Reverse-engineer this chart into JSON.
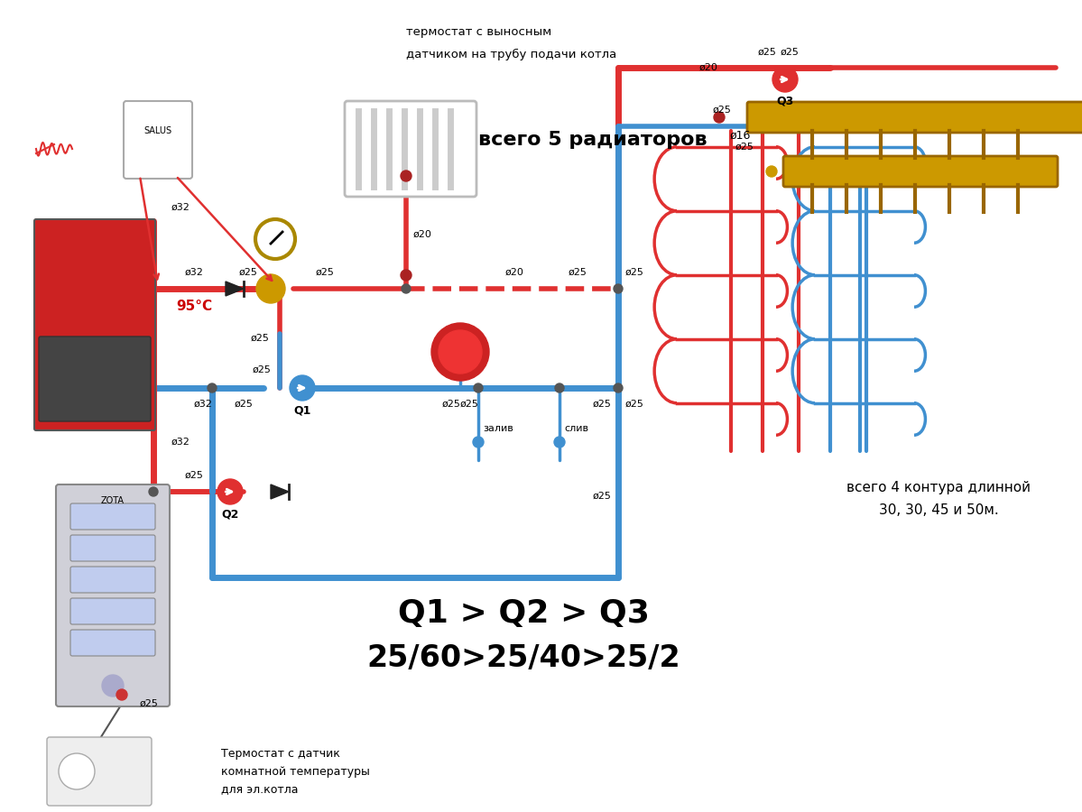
{
  "bg_color": "#ffffff",
  "red": "#e03030",
  "blue": "#4090d0",
  "title_top": "термостат с выносным",
  "title_top2": "датчиком на трубу подачи котла",
  "label_radiators": "всего 5 радиаторов",
  "label_contours": "всего 4 контура длинной",
  "label_contours2": "30, 30, 45 и 50м.",
  "label_q1": "Q1 > Q2 > Q3",
  "label_q2": "25/60>25/40>25/2",
  "label_thermo_bottom1": "Термостат с датчик",
  "label_thermo_bottom2": "комнатной температуры",
  "label_thermo_bottom3": "для эл.котла",
  "label_95": "95°C",
  "label_Q1": "Q1",
  "label_Q2": "Q2",
  "label_Q3": "Q3",
  "label_zaliv": "залив",
  "label_sliv": "слив",
  "label_d16": "ø16",
  "label_d20": "ø20",
  "label_d25": "ø25",
  "label_d32": "ø32"
}
